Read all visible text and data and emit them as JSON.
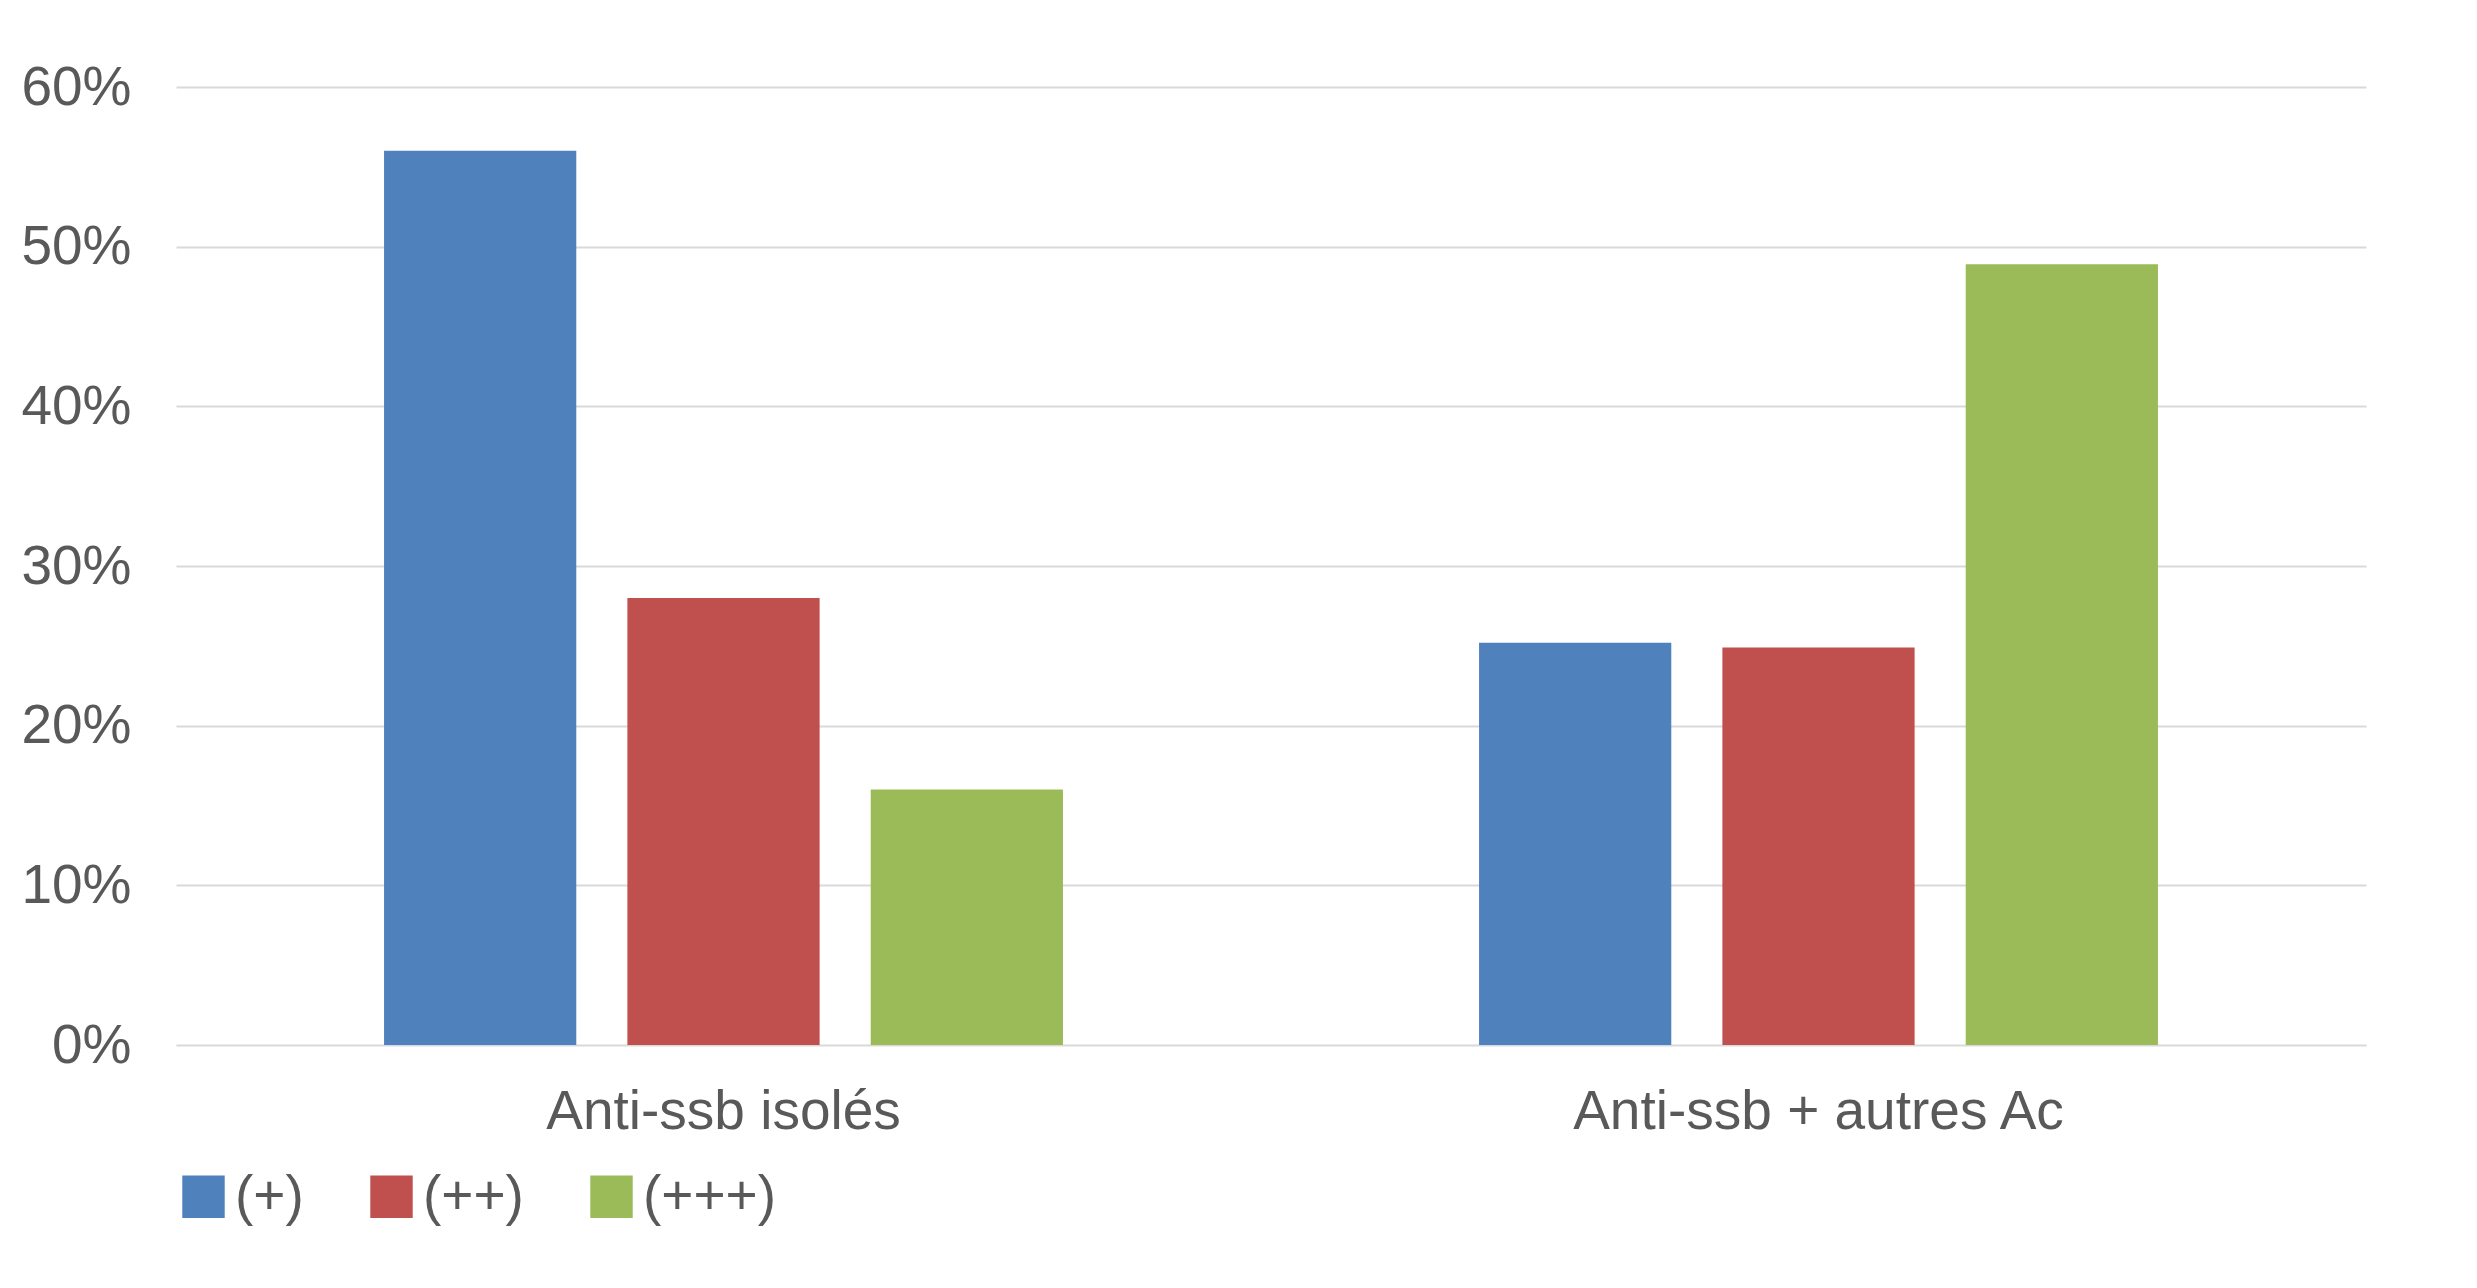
{
  "chart_data": {
    "type": "bar",
    "categories": [
      "Anti-ssb isolés",
      "Anti-ssb + autres Ac"
    ],
    "series": [
      {
        "name": "(+)",
        "color": "#4f81bd",
        "values": [
          56,
          25.2
        ]
      },
      {
        "name": "(++)",
        "color": "#c0504d",
        "values": [
          28,
          24.9
        ]
      },
      {
        "name": "(+++)",
        "color": "#9bbb59",
        "values": [
          16,
          48.9
        ]
      }
    ],
    "ylim": [
      0,
      60
    ],
    "yticks": [
      {
        "value": 0,
        "label": "0%"
      },
      {
        "value": 10,
        "label": "10%"
      },
      {
        "value": 20,
        "label": "20%"
      },
      {
        "value": 30,
        "label": "30%"
      },
      {
        "value": 40,
        "label": "40%"
      },
      {
        "value": 50,
        "label": "50%"
      },
      {
        "value": 60,
        "label": "60%"
      }
    ],
    "grid": "y",
    "legend": "bottom"
  }
}
